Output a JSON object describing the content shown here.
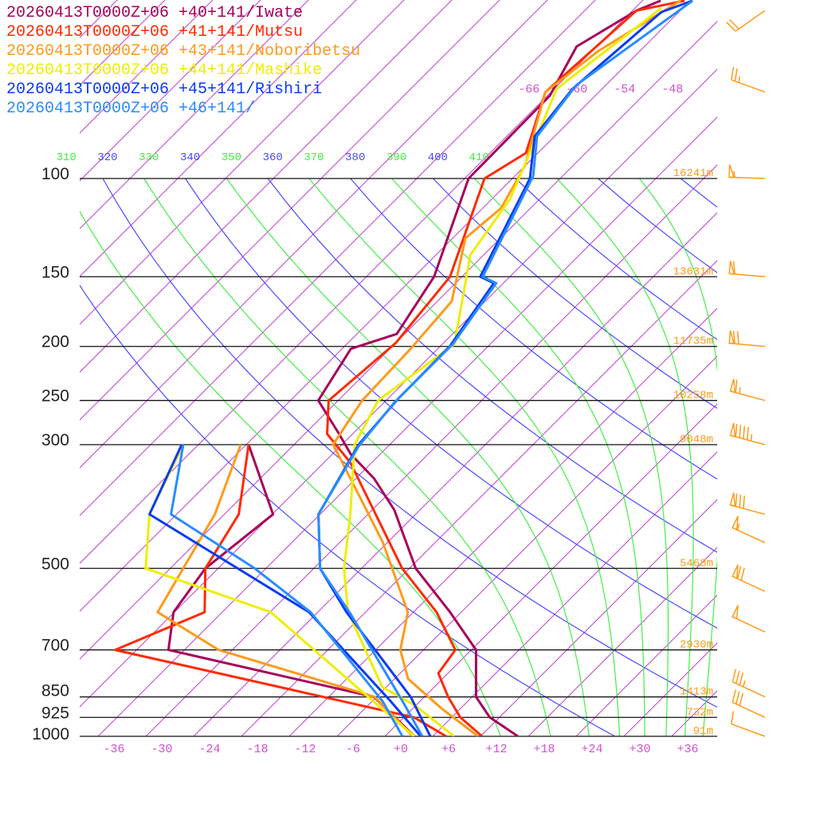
{
  "legend": [
    {
      "text": "20260413T0000Z+06 +40+141/Iwate",
      "color": "#a8005a"
    },
    {
      "text": "20260413T0000Z+06 +41+141/Mutsu",
      "color": "#ff2a00"
    },
    {
      "text": "20260413T0000Z+06 +43+141/Noboribetsu",
      "color": "#ff9a1a"
    },
    {
      "text": "20260413T0000Z+06 +44+141/Mashike",
      "color": "#eeee00"
    },
    {
      "text": "20260413T0000Z+06 +45+141/Rishiri",
      "color": "#0a3cf0"
    },
    {
      "text": "20260413T0000Z+06 +46+141/",
      "color": "#2a8cff"
    }
  ],
  "chart_data": {
    "type": "skew-t",
    "pressure_levels": [
      100,
      150,
      200,
      250,
      300,
      500,
      700,
      850,
      925,
      1000
    ],
    "pressure_labels": [
      "100",
      "150",
      "200",
      "250",
      "300",
      "500",
      "700",
      "850",
      "925",
      "1000"
    ],
    "height_labels": [
      "16241m",
      "13631m",
      "11735m",
      "10258m",
      "9048m",
      "5468m",
      "2930m",
      "1413m",
      "732m",
      "91m"
    ],
    "height_pressures": [
      100,
      150,
      200,
      250,
      300,
      500,
      700,
      850,
      925,
      1000
    ],
    "temp_ticks": [
      -36,
      -30,
      -24,
      -18,
      -12,
      -6,
      0,
      6,
      12,
      18,
      24,
      30,
      36
    ],
    "temp_tick_labels": [
      "-36",
      "-30",
      "-24",
      "-18",
      "-12",
      "-6",
      "+0",
      "+6",
      "+12",
      "+18",
      "+24",
      "+30",
      "+36"
    ],
    "isotherm_top_labels": [
      "-66",
      "-60",
      "-54",
      "-48"
    ],
    "isotherm_top_values": [
      -66,
      -60,
      -54,
      -48
    ],
    "adiabat_labels": [
      "310",
      "320",
      "330",
      "340",
      "350",
      "360",
      "370",
      "380",
      "390",
      "400",
      "410"
    ],
    "adiabat_values": [
      310,
      320,
      330,
      340,
      350,
      360,
      370,
      380,
      390,
      400,
      410
    ],
    "colors": {
      "isotherm": "#c040d0",
      "dry_adiabat": "#4a4aff",
      "moist_adiabat": "#44ee44",
      "axis": "#000000"
    },
    "series": [
      {
        "name": "Iwate",
        "color": "#a8005a",
        "temperature": [
          [
            1000,
            14.7
          ],
          [
            925,
            8.8
          ],
          [
            850,
            4.5
          ],
          [
            700,
            -1.4
          ],
          [
            599,
            -9.4
          ],
          [
            500,
            -19.2
          ],
          [
            393,
            -29.2
          ],
          [
            345,
            -35.7
          ],
          [
            312,
            -41.7
          ],
          [
            287,
            -45.7
          ],
          [
            250,
            -52.5
          ],
          [
            202,
            -54.9
          ],
          [
            190,
            -51
          ],
          [
            150,
            -53.5
          ],
          [
            100,
            -61.5
          ],
          [
            71,
            -61.7
          ],
          [
            58,
            -64.5
          ],
          [
            50,
            -61.5
          ],
          [
            48,
            -59.7
          ]
        ],
        "dewpoint": [
          [
            1000,
            1.7
          ],
          [
            850,
            -8.3
          ],
          [
            700,
            -40
          ],
          [
            599,
            -44.1
          ],
          [
            500,
            -45.6
          ],
          [
            400,
            -43.9
          ],
          [
            300,
            -55.7
          ]
        ]
      },
      {
        "name": "Mutsu",
        "color": "#ff2a00",
        "temperature": [
          [
            1000,
            10.2
          ],
          [
            925,
            5.1
          ],
          [
            850,
            1
          ],
          [
            771,
            -3.2
          ],
          [
            700,
            -4
          ],
          [
            599,
            -11.1
          ],
          [
            500,
            -20.9
          ],
          [
            323,
            -40.7
          ],
          [
            287,
            -47.2
          ],
          [
            250,
            -51.2
          ],
          [
            197,
            -50
          ],
          [
            150,
            -51.5
          ],
          [
            100,
            -59.5
          ],
          [
            90,
            -57.5
          ],
          [
            70,
            -62.7
          ],
          [
            50,
            -61.5
          ],
          [
            48,
            -56.7
          ]
        ],
        "dewpoint": [
          [
            1000,
            5.7
          ],
          [
            925,
            -0.7
          ],
          [
            700,
            -46.7
          ],
          [
            599,
            -40.2
          ],
          [
            500,
            -45.6
          ],
          [
            400,
            -48.2
          ],
          [
            300,
            -55.7
          ]
        ]
      },
      {
        "name": "Noboribetsu",
        "color": "#ff9a1a",
        "temperature": [
          [
            1000,
            9.7
          ],
          [
            894,
            1.8
          ],
          [
            789,
            -6.3
          ],
          [
            700,
            -10.9
          ],
          [
            599,
            -14.7
          ],
          [
            448,
            -26.7
          ],
          [
            323,
            -41.7
          ],
          [
            300,
            -45.1
          ],
          [
            250,
            -47
          ],
          [
            202,
            -47.4
          ],
          [
            166,
            -48.2
          ],
          [
            128,
            -54.4
          ],
          [
            113,
            -53.7
          ],
          [
            95,
            -56
          ],
          [
            70,
            -62.7
          ],
          [
            59,
            -61.2
          ],
          [
            48,
            -57.2
          ]
        ],
        "dewpoint": [
          [
            1000,
            1.5
          ],
          [
            850,
            -8.2
          ],
          [
            700,
            -33.7
          ],
          [
            599,
            -46.1
          ],
          [
            400,
            -51.2
          ],
          [
            300,
            -56.7
          ]
        ]
      },
      {
        "name": "Mashike",
        "color": "#eeee00",
        "temperature": [
          [
            1000,
            6.7
          ],
          [
            879,
            -2.2
          ],
          [
            816,
            -8.5
          ],
          [
            599,
            -22.2
          ],
          [
            500,
            -28.2
          ],
          [
            400,
            -34.2
          ],
          [
            300,
            -42.4
          ],
          [
            250,
            -45
          ],
          [
            198,
            -42.5
          ],
          [
            137,
            -51.7
          ],
          [
            109,
            -53.7
          ],
          [
            89,
            -57.2
          ],
          [
            69,
            -61.7
          ],
          [
            49.5,
            -58.7
          ]
        ],
        "dewpoint": [
          [
            1000,
            1.7
          ],
          [
            835,
            -10.2
          ],
          [
            599,
            -31.9
          ],
          [
            500,
            -53.1
          ],
          [
            400,
            -59.4
          ],
          [
            300,
            -63.9
          ]
        ]
      },
      {
        "name": "Rishiri",
        "color": "#0a3cf0",
        "temperature": [
          [
            1000,
            3.7
          ],
          [
            850,
            -3.7
          ],
          [
            599,
            -22.4
          ],
          [
            500,
            -31.2
          ],
          [
            400,
            -38.2
          ],
          [
            300,
            -41.9
          ],
          [
            248,
            -42.7
          ],
          [
            200,
            -42.8
          ],
          [
            154,
            -45.2
          ],
          [
            150,
            -47.7
          ],
          [
            100,
            -53.8
          ],
          [
            84,
            -58.5
          ],
          [
            69,
            -59.7
          ],
          [
            50.3,
            -58.2
          ],
          [
            48,
            -55.7
          ]
        ],
        "dewpoint": [
          [
            1000,
            2.5
          ],
          [
            865,
            -5.7
          ],
          [
            599,
            -27.1
          ],
          [
            400,
            -59.4
          ],
          [
            300,
            -64.1
          ]
        ]
      },
      {
        "name": "+46+141",
        "color": "#2a8cff",
        "temperature": [
          [
            1000,
            2.7
          ],
          [
            865,
            -4.2
          ],
          [
            603,
            -21.7
          ],
          [
            500,
            -31.2
          ],
          [
            400,
            -38.2
          ],
          [
            302,
            -41.7
          ],
          [
            252,
            -42.7
          ],
          [
            198,
            -42.7
          ],
          [
            154,
            -44.9
          ],
          [
            150,
            -47.4
          ],
          [
            99,
            -53.7
          ],
          [
            84,
            -58.2
          ],
          [
            68,
            -59.7
          ],
          [
            48,
            -55.7
          ]
        ],
        "dewpoint": [
          [
            1000,
            0.2
          ],
          [
            865,
            -6.7
          ],
          [
            599,
            -26.9
          ],
          [
            500,
            -39.4
          ],
          [
            400,
            -56.7
          ],
          [
            300,
            -63.9
          ]
        ]
      }
    ],
    "wind_barbs": [
      {
        "p": 50,
        "dir": 235,
        "speed_kt": 20
      },
      {
        "p": 70,
        "dir": 290,
        "speed_kt": 25
      },
      {
        "p": 100,
        "dir": 272,
        "speed_kt": 55
      },
      {
        "p": 150,
        "dir": 275,
        "speed_kt": 60
      },
      {
        "p": 200,
        "dir": 275,
        "speed_kt": 70
      },
      {
        "p": 250,
        "dir": 285,
        "speed_kt": 65
      },
      {
        "p": 300,
        "dir": 285,
        "speed_kt": 95
      },
      {
        "p": 400,
        "dir": 285,
        "speed_kt": 80
      },
      {
        "p": 450,
        "dir": 295,
        "speed_kt": 55
      },
      {
        "p": 550,
        "dir": 295,
        "speed_kt": 70
      },
      {
        "p": 650,
        "dir": 295,
        "speed_kt": 50
      },
      {
        "p": 850,
        "dir": 295,
        "speed_kt": 35
      },
      {
        "p": 925,
        "dir": 295,
        "speed_kt": 30
      },
      {
        "p": 1000,
        "dir": 290,
        "speed_kt": 10
      }
    ]
  }
}
